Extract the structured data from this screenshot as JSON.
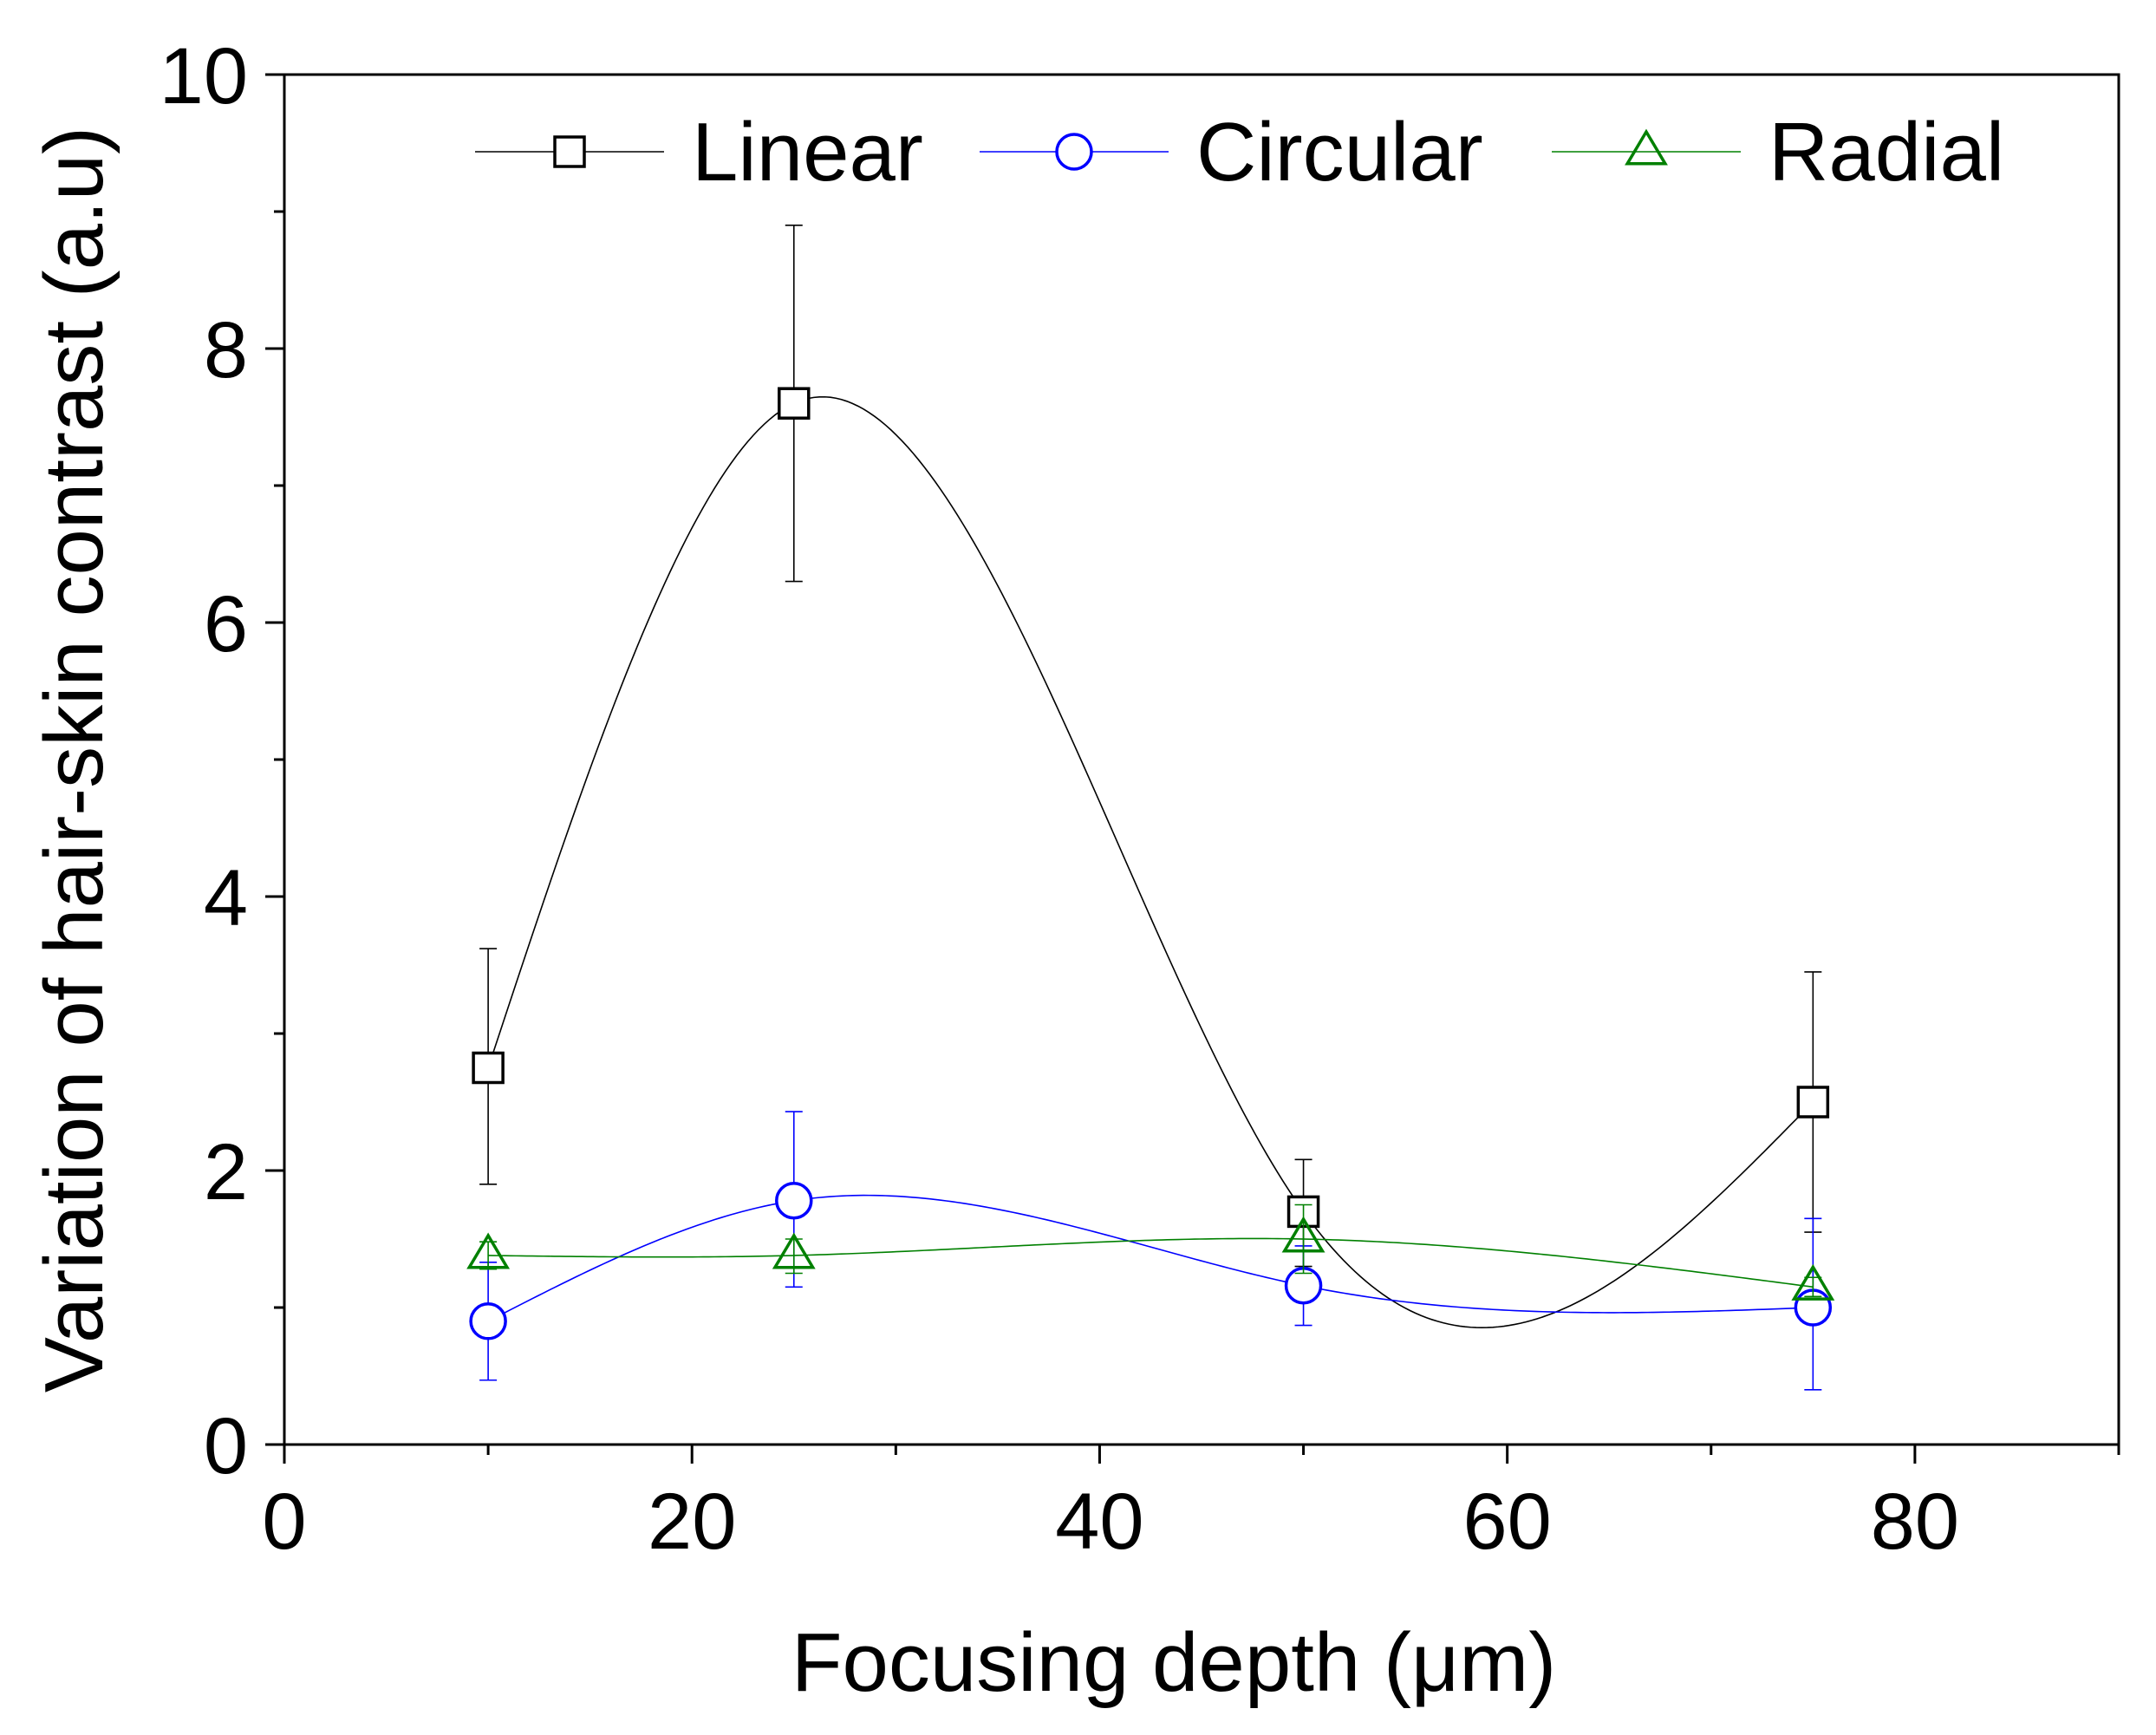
{
  "chart_data": {
    "type": "line",
    "title": "",
    "xlabel": "Focusing depth (μm)",
    "ylabel": "Variation of hair-skin contrast (a.u)",
    "xlim": [
      0,
      90
    ],
    "ylim": [
      0,
      10
    ],
    "x_ticks": [
      0,
      20,
      40,
      60,
      80
    ],
    "x_tick_labels": [
      "0",
      "20",
      "40",
      "60",
      "80"
    ],
    "y_ticks": [
      0,
      2,
      4,
      6,
      8,
      10
    ],
    "y_tick_labels": [
      "0",
      "2",
      "4",
      "6",
      "8",
      "10"
    ],
    "x_minor_step": 10,
    "y_minor_step": 1,
    "grid": false,
    "legend_position": "top",
    "curve_style": "smooth spline",
    "series": [
      {
        "name": "Linear",
        "color": "#000000",
        "marker": "square",
        "x": [
          10,
          25,
          50,
          75
        ],
        "values": [
          2.75,
          7.6,
          1.7,
          2.5
        ],
        "error_low": [
          1.9,
          6.3,
          1.3,
          1.55
        ],
        "error_high": [
          3.62,
          8.9,
          2.08,
          3.45
        ]
      },
      {
        "name": "Circular",
        "color": "#0000ff",
        "marker": "circle",
        "x": [
          10,
          25,
          50,
          75
        ],
        "values": [
          0.9,
          1.78,
          1.16,
          1.0
        ],
        "error_low": [
          0.47,
          1.15,
          0.87,
          0.4
        ],
        "error_high": [
          1.33,
          2.43,
          1.45,
          1.65
        ]
      },
      {
        "name": "Radial",
        "color": "#008000",
        "marker": "triangle",
        "x": [
          10,
          25,
          50,
          75
        ],
        "values": [
          1.38,
          1.38,
          1.5,
          1.15
        ],
        "error_low": [
          1.28,
          1.25,
          1.25,
          1.08
        ],
        "error_high": [
          1.48,
          1.5,
          1.75,
          1.22
        ]
      }
    ]
  }
}
